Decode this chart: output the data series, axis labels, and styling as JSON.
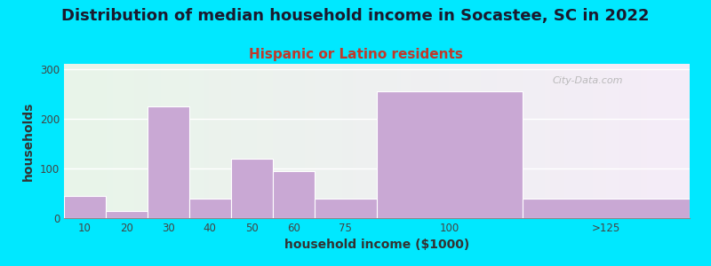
{
  "title": "Distribution of median household income in Socastee, SC in 2022",
  "subtitle": "Hispanic or Latino residents",
  "xlabel": "household income ($1000)",
  "ylabel": "households",
  "bar_values": [
    45,
    15,
    225,
    40,
    120,
    95,
    40,
    255,
    40
  ],
  "bar_left_edges": [
    5,
    15,
    25,
    35,
    45,
    55,
    65,
    80,
    115
  ],
  "bar_right_edges": [
    15,
    25,
    35,
    45,
    55,
    65,
    80,
    115,
    155
  ],
  "bar_color": "#c9a8d4",
  "ylim": [
    0,
    310
  ],
  "yticks": [
    0,
    100,
    200,
    300
  ],
  "xtick_labels": [
    "10",
    "20",
    "30",
    "40",
    "50",
    "60",
    "75",
    "100",
    ">125"
  ],
  "xtick_positions": [
    10,
    20,
    30,
    40,
    50,
    60,
    72.5,
    97.5,
    135
  ],
  "xlim": [
    5,
    155
  ],
  "background_outer": "#00e8ff",
  "subtitle_color": "#c0392b",
  "title_fontsize": 13,
  "subtitle_fontsize": 11,
  "axis_label_fontsize": 10,
  "watermark": "City-Data.com"
}
